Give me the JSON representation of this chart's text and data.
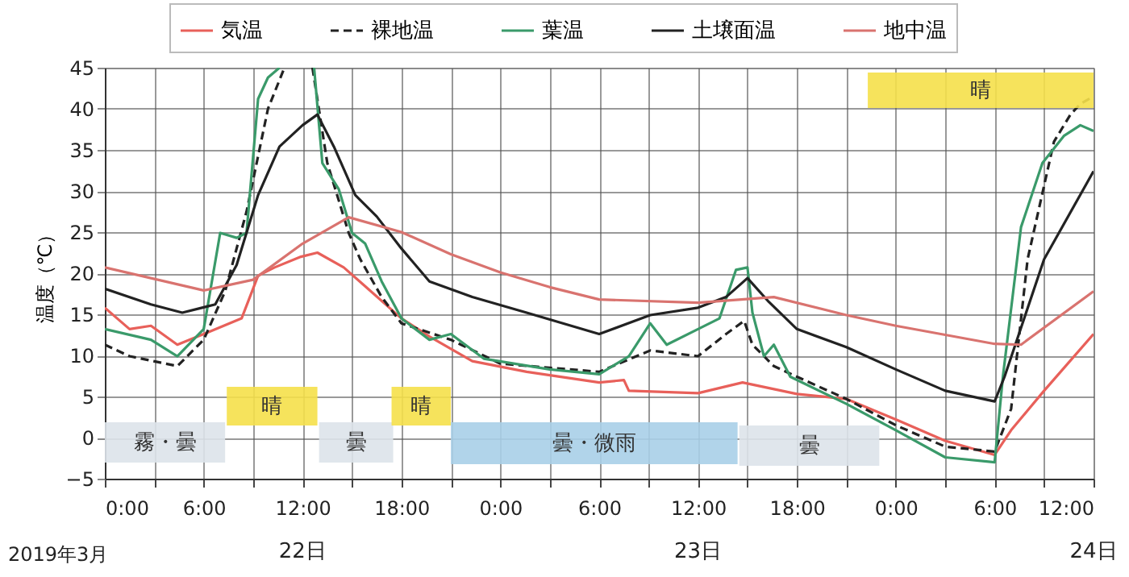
{
  "chart_data": {
    "type": "line",
    "ylabel": "温度（℃）",
    "xlim": [
      "2019-03-22T00:00",
      "2019-03-24T12:00"
    ],
    "ylim": [
      -5,
      45
    ],
    "xticks": [
      {
        "value": "2019-03-22T00:00",
        "label": "0:00"
      },
      {
        "value": "2019-03-22T03:00",
        "label": null
      },
      {
        "value": "2019-03-22T06:00",
        "label": "6:00"
      },
      {
        "value": "2019-03-22T09:00",
        "label": null
      },
      {
        "value": "2019-03-22T12:00",
        "label": "12:00"
      },
      {
        "value": "2019-03-22T15:00",
        "label": null
      },
      {
        "value": "2019-03-22T18:00",
        "label": "18:00"
      },
      {
        "value": "2019-03-22T21:00",
        "label": null
      },
      {
        "value": "2019-03-23T00:00",
        "label": "0:00"
      },
      {
        "value": "2019-03-23T03:00",
        "label": null
      },
      {
        "value": "2019-03-23T06:00",
        "label": "6:00"
      },
      {
        "value": "2019-03-23T09:00",
        "label": null
      },
      {
        "value": "2019-03-23T12:00",
        "label": "12:00"
      },
      {
        "value": "2019-03-23T15:00",
        "label": null
      },
      {
        "value": "2019-03-23T18:00",
        "label": "18:00"
      },
      {
        "value": "2019-03-23T21:00",
        "label": null
      },
      {
        "value": "2019-03-24T00:00",
        "label": "0:00"
      },
      {
        "value": "2019-03-24T03:00",
        "label": null
      },
      {
        "value": "2019-03-24T06:00",
        "label": "6:00"
      },
      {
        "value": "2019-03-24T09:00",
        "label": null
      },
      {
        "value": "2019-03-24T12:00",
        "label": "12:00"
      }
    ],
    "yticks": [
      -5,
      0,
      5,
      10,
      15,
      20,
      25,
      30,
      35,
      40,
      45
    ],
    "grid": true,
    "legend": "top",
    "marker": "none",
    "series": [
      {
        "name": "気温",
        "color": "#e8605a",
        "line_style": "solid",
        "x": [
          "2019-03-22T00:00",
          "2019-03-22T01:30",
          "2019-03-22T02:48",
          "2019-03-22T04:24",
          "2019-03-22T06:00",
          "2019-03-22T08:18",
          "2019-03-22T09:18",
          "2019-03-22T10:18",
          "2019-03-22T11:54",
          "2019-03-22T12:54",
          "2019-03-22T14:30",
          "2019-03-22T15:48",
          "2019-03-22T18:00",
          "2019-03-22T19:42",
          "2019-03-22T22:18",
          "2019-03-23T01:36",
          "2019-03-23T06:00",
          "2019-03-23T07:30",
          "2019-03-23T07:48",
          "2019-03-23T12:00",
          "2019-03-23T14:42",
          "2019-03-23T18:00",
          "2019-03-23T21:00",
          "2019-03-24T00:00",
          "2019-03-24T03:00",
          "2019-03-24T06:00",
          "2019-03-24T07:00",
          "2019-03-24T09:00",
          "2019-03-24T12:00"
        ],
        "values": [
          15.8,
          13.2,
          13.6,
          11.3,
          12.6,
          14.5,
          19.7,
          20.7,
          22,
          22.5,
          20.7,
          18.4,
          14.5,
          12.3,
          9.3,
          8,
          6.7,
          7,
          5.7,
          5.4,
          6.7,
          5.3,
          4.7,
          2.2,
          -0.4,
          -2.1,
          0.9,
          5.7,
          12.6
        ]
      },
      {
        "name": "裸地温",
        "color": "#222222",
        "line_style": "dashed",
        "x": [
          "2019-03-22T00:00",
          "2019-03-22T01:30",
          "2019-03-22T04:24",
          "2019-03-22T06:00",
          "2019-03-22T07:18",
          "2019-03-22T08:36",
          "2019-03-22T09:54",
          "2019-03-22T10:54",
          "2019-03-22T11:30",
          "2019-03-22T12:36",
          "2019-03-22T13:30",
          "2019-03-22T14:48",
          "2019-03-22T15:30",
          "2019-03-22T16:48",
          "2019-03-22T18:00",
          "2019-03-22T21:00",
          "2019-03-23T00:00",
          "2019-03-23T06:00",
          "2019-03-23T09:06",
          "2019-03-23T12:00",
          "2019-03-23T13:42",
          "2019-03-23T14:48",
          "2019-03-23T15:18",
          "2019-03-23T16:36",
          "2019-03-23T18:00",
          "2019-03-23T21:00",
          "2019-03-24T00:00",
          "2019-03-24T03:00",
          "2019-03-24T06:00",
          "2019-03-24T07:00",
          "2019-03-24T08:00",
          "2019-03-24T09:36",
          "2019-03-24T10:36",
          "2019-03-24T11:12",
          "2019-03-24T12:00"
        ],
        "values": [
          11.3,
          9.9,
          8.7,
          11.9,
          17.8,
          27.5,
          40,
          45,
          null,
          45,
          33.4,
          24.9,
          21.7,
          17.1,
          13.9,
          11.9,
          9,
          8,
          10.6,
          9.9,
          12.6,
          14.2,
          11.3,
          8.7,
          7.4,
          4.7,
          1.5,
          -1.1,
          -1.7,
          3.5,
          21.7,
          36,
          39.3,
          40.6,
          41.5
        ]
      },
      {
        "name": "葉温",
        "color": "#3a9a6a",
        "line_style": "solid",
        "x": [
          "2019-03-22T00:00",
          "2019-03-22T02:48",
          "2019-03-22T04:24",
          "2019-03-22T06:00",
          "2019-03-22T07:00",
          "2019-03-22T08:00",
          "2019-03-22T08:36",
          "2019-03-22T09:18",
          "2019-03-22T09:54",
          "2019-03-22T10:36",
          "2019-03-22T11:30",
          "2019-03-22T12:42",
          "2019-03-22T13:12",
          "2019-03-22T14:12",
          "2019-03-22T15:00",
          "2019-03-22T15:48",
          "2019-03-22T16:48",
          "2019-03-22T18:00",
          "2019-03-22T19:42",
          "2019-03-22T21:00",
          "2019-03-22T23:00",
          "2019-03-23T03:00",
          "2019-03-23T06:00",
          "2019-03-23T07:48",
          "2019-03-23T09:06",
          "2019-03-23T10:06",
          "2019-03-23T12:00",
          "2019-03-23T13:18",
          "2019-03-23T14:18",
          "2019-03-23T15:00",
          "2019-03-23T15:18",
          "2019-03-23T16:00",
          "2019-03-23T16:36",
          "2019-03-23T17:36",
          "2019-03-23T21:00",
          "2019-03-24T00:00",
          "2019-03-24T03:00",
          "2019-03-24T06:00",
          "2019-03-24T06:30",
          "2019-03-24T07:36",
          "2019-03-24T08:54",
          "2019-03-24T10:12",
          "2019-03-24T11:12",
          "2019-03-24T12:00"
        ],
        "values": [
          13.2,
          11.9,
          9.9,
          13.2,
          24.9,
          24.3,
          24.9,
          41.2,
          43.8,
          45,
          null,
          45,
          33.4,
          30.2,
          24.9,
          23.6,
          19,
          14.5,
          11.9,
          12.6,
          9.6,
          8.3,
          7.7,
          9.9,
          13.9,
          11.3,
          13.2,
          14.5,
          20.4,
          20.7,
          15.2,
          9.9,
          11.3,
          7.4,
          4.1,
          0.9,
          -2.4,
          -3,
          7.4,
          25.6,
          33.4,
          36.7,
          38,
          37.3
        ]
      },
      {
        "name": "土壌面温",
        "color": "#222222",
        "line_style": "solid",
        "x": [
          "2019-03-22T00:00",
          "2019-03-22T02:48",
          "2019-03-22T04:42",
          "2019-03-22T06:42",
          "2019-03-22T08:00",
          "2019-03-22T09:18",
          "2019-03-22T10:36",
          "2019-03-22T12:00",
          "2019-03-22T12:54",
          "2019-03-22T13:54",
          "2019-03-22T15:12",
          "2019-03-22T16:30",
          "2019-03-22T18:00",
          "2019-03-22T19:42",
          "2019-03-22T22:18",
          "2019-03-23T01:36",
          "2019-03-23T06:00",
          "2019-03-23T09:06",
          "2019-03-23T12:00",
          "2019-03-23T13:42",
          "2019-03-23T15:00",
          "2019-03-23T16:18",
          "2019-03-23T18:00",
          "2019-03-23T21:00",
          "2019-03-24T00:00",
          "2019-03-24T03:00",
          "2019-03-24T06:00",
          "2019-03-24T06:36",
          "2019-03-24T09:00",
          "2019-03-24T12:00"
        ],
        "values": [
          18.1,
          16.2,
          15.2,
          16.2,
          21,
          29.5,
          35.4,
          38,
          39.3,
          35.4,
          29.5,
          26.9,
          23,
          19,
          17.1,
          15.2,
          12.6,
          14.9,
          15.8,
          17.1,
          19.4,
          16.5,
          13.2,
          11,
          8.3,
          5.7,
          4.4,
          7.4,
          21.7,
          32.4
        ]
      },
      {
        "name": "地中温",
        "color": "#d9736f",
        "line_style": "solid",
        "x": [
          "2019-03-22T00:00",
          "2019-03-22T06:00",
          "2019-03-22T09:00",
          "2019-03-22T12:00",
          "2019-03-22T14:48",
          "2019-03-22T18:00",
          "2019-03-22T21:00",
          "2019-03-23T00:00",
          "2019-03-23T03:00",
          "2019-03-23T06:00",
          "2019-03-23T12:00",
          "2019-03-23T16:36",
          "2019-03-23T21:00",
          "2019-03-24T00:00",
          "2019-03-24T06:00",
          "2019-03-24T07:36",
          "2019-03-24T12:00"
        ],
        "values": [
          20.7,
          17.9,
          19.2,
          23.6,
          26.8,
          25,
          22.3,
          20.1,
          18.3,
          16.8,
          16.4,
          17.1,
          14.9,
          13.6,
          11.4,
          11.3,
          17.8
        ]
      }
    ],
    "bands": [
      {
        "axis": "x",
        "from": "2019-03-22T00:00",
        "to": "2019-03-22T07:18",
        "label": "霧・曇",
        "color": "#dde3ea"
      },
      {
        "axis": "x",
        "from": "2019-03-22T07:24",
        "to": "2019-03-22T12:54",
        "label": "晴",
        "color": "#f5e04a"
      },
      {
        "axis": "x",
        "from": "2019-03-22T13:00",
        "to": "2019-03-22T17:30",
        "label": "曇",
        "color": "#dde3ea"
      },
      {
        "axis": "x",
        "from": "2019-03-22T17:24",
        "to": "2019-03-22T21:00",
        "label": "晴",
        "color": "#f5e04a"
      },
      {
        "axis": "x",
        "from": "2019-03-22T21:00",
        "to": "2019-03-23T14:24",
        "label": "曇・微雨",
        "color": "#a9cfe8"
      },
      {
        "axis": "x",
        "from": "2019-03-23T14:30",
        "to": "2019-03-23T23:00",
        "label": "曇",
        "color": "#dde3ea"
      },
      {
        "axis": "x",
        "from": "2019-03-23T22:18",
        "to": "2019-03-24T12:00",
        "label": "晴",
        "color": "#f5e04a"
      }
    ],
    "annotations": [
      "2019年3月",
      "22日",
      "23日",
      "24日"
    ]
  }
}
